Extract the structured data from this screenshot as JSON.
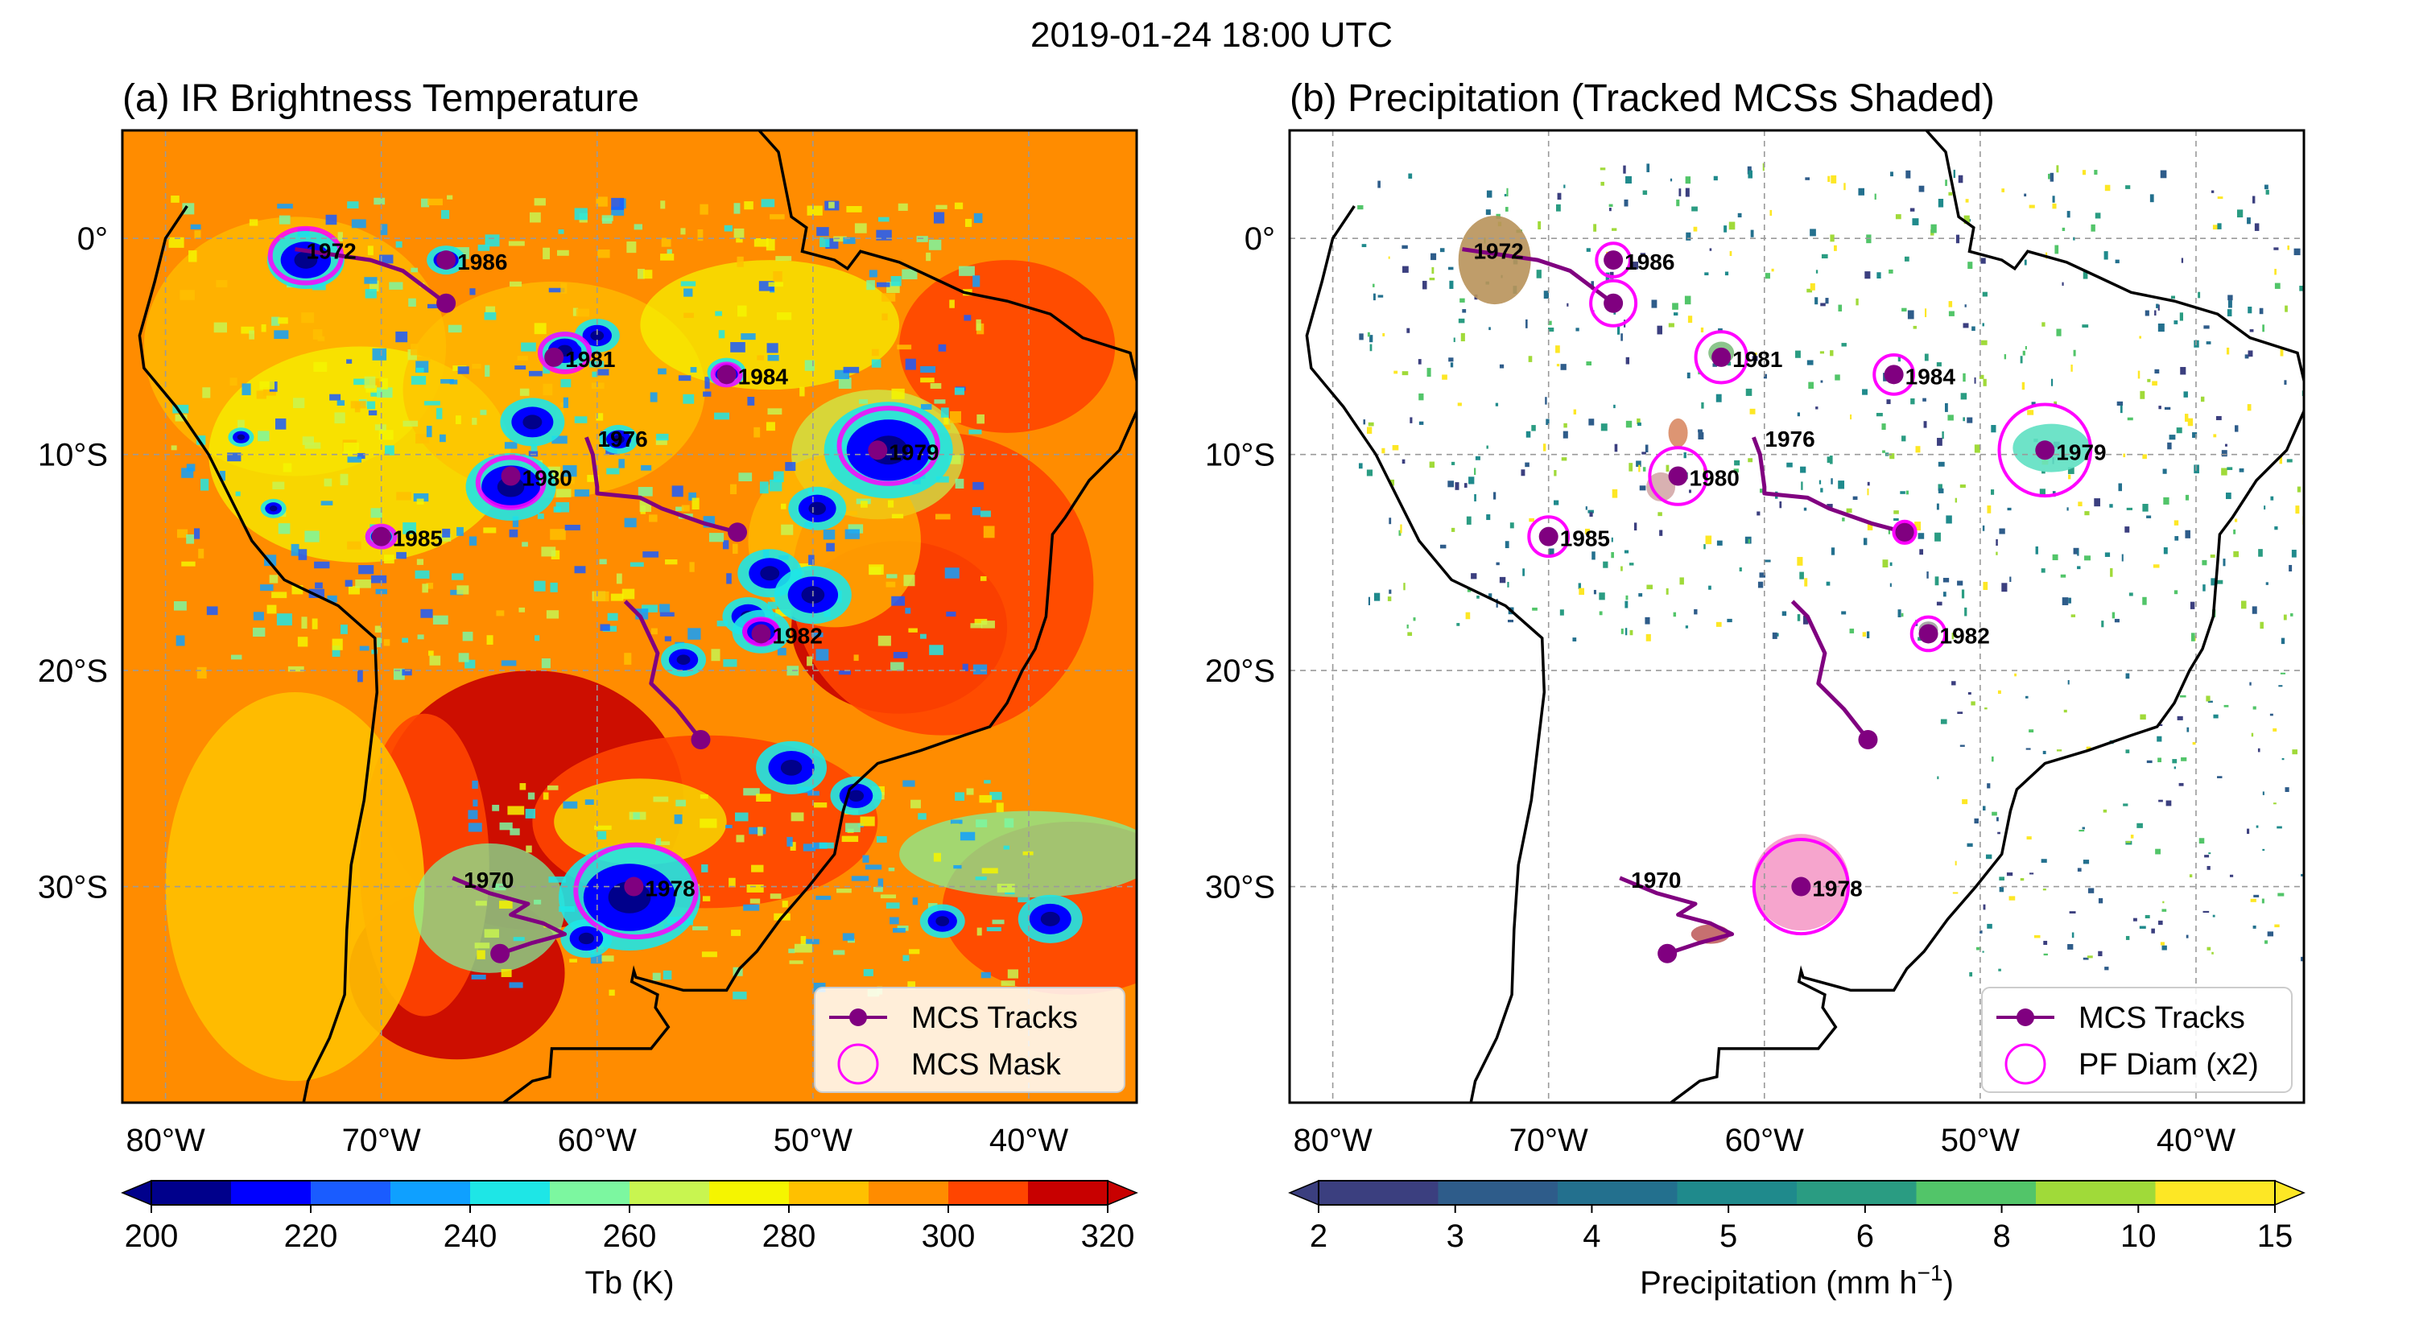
{
  "suptitle": "2019-01-24 18:00 UTC",
  "chart_data": [
    {
      "type": "heatmap",
      "title": "(a) IR Brightness Temperature",
      "lon_range": [
        -82,
        -35
      ],
      "lat_range": [
        -40,
        5
      ],
      "xticks": [
        -80,
        -70,
        -60,
        -50,
        -40
      ],
      "xtick_labels": [
        "80°W",
        "70°W",
        "60°W",
        "50°W",
        "40°W"
      ],
      "yticks": [
        0,
        -10,
        -20,
        -30
      ],
      "ytick_labels": [
        "0°",
        "10°S",
        "20°S",
        "30°S"
      ],
      "colorbar": {
        "label": "Tb (K)",
        "ticks": [
          200,
          220,
          240,
          260,
          280,
          300,
          320
        ],
        "tick_labels": [
          "200",
          "220",
          "240",
          "260",
          "280",
          "300",
          "320"
        ],
        "colors": [
          "#00008b",
          "#0000ff",
          "#1a5cff",
          "#0fa0ff",
          "#1ee6e6",
          "#7cf7a0",
          "#c8f550",
          "#f5f500",
          "#ffc000",
          "#ff8c00",
          "#ff4500",
          "#c80000"
        ]
      },
      "legend": {
        "location": "lower right",
        "entries": [
          {
            "label": "MCS Tracks",
            "type": "line-marker",
            "color": "#800080"
          },
          {
            "label": "MCS Mask",
            "type": "circle",
            "color": "#ff00ff"
          }
        ]
      }
    },
    {
      "type": "heatmap",
      "title": "(b) Precipitation (Tracked MCSs Shaded)",
      "lon_range": [
        -82,
        -35
      ],
      "lat_range": [
        -40,
        5
      ],
      "xticks": [
        -80,
        -70,
        -60,
        -50,
        -40
      ],
      "xtick_labels": [
        "80°W",
        "70°W",
        "60°W",
        "50°W",
        "40°W"
      ],
      "yticks": [
        0,
        -10,
        -20,
        -30
      ],
      "ytick_labels": [
        "0°",
        "10°S",
        "20°S",
        "30°S"
      ],
      "colorbar": {
        "label": "Precipitation (mm h",
        "label_exponent": "−1",
        "label_end": ")",
        "ticks": [
          2,
          3,
          4,
          5,
          6,
          8,
          10,
          15
        ],
        "tick_labels": [
          "2",
          "3",
          "4",
          "5",
          "6",
          "8",
          "10",
          "15"
        ],
        "colors": [
          "#3b3f7f",
          "#2e5c8a",
          "#23708e",
          "#1f8a8c",
          "#2a9c82",
          "#52c569",
          "#a0da39",
          "#fde725"
        ]
      },
      "legend": {
        "location": "lower right",
        "entries": [
          {
            "label": "MCS Tracks",
            "type": "line-marker",
            "color": "#800080"
          },
          {
            "label": "PF Diam (x2)",
            "type": "circle",
            "color": "#ff00ff"
          }
        ]
      }
    }
  ],
  "mcs_tracks": [
    {
      "id": "1972",
      "points": [
        [
          -67,
          -3
        ],
        [
          -69,
          -1.5
        ],
        [
          -70.5,
          -1
        ],
        [
          -74,
          -0.5
        ]
      ],
      "pf_diam": 1.0
    },
    {
      "id": "1986",
      "points": [
        [
          -67,
          -1
        ]
      ],
      "pf_diam": 0.6
    },
    {
      "id": "1981",
      "points": [
        [
          -62,
          -5.5
        ]
      ],
      "pf_diam": 1.2
    },
    {
      "id": "1984",
      "points": [
        [
          -54,
          -6.3
        ]
      ],
      "pf_diam": 0.8
    },
    {
      "id": "1976",
      "points": [
        [
          -53.5,
          -13.6
        ],
        [
          -55,
          -13.2
        ],
        [
          -57,
          -12.5
        ],
        [
          -58,
          -12
        ],
        [
          -60,
          -11.8
        ],
        [
          -60,
          -11.5
        ],
        [
          -60.2,
          -10
        ],
        [
          -60.5,
          -9.2
        ]
      ],
      "pf_diam": 0.2
    },
    {
      "id": "1979",
      "points": [
        [
          -47,
          -9.8
        ]
      ],
      "pf_diam": 2.6
    },
    {
      "id": "1980",
      "points": [
        [
          -64,
          -11
        ]
      ],
      "pf_diam": 1.4
    },
    {
      "id": "1985",
      "points": [
        [
          -70,
          -13.8
        ]
      ],
      "pf_diam": 0.8
    },
    {
      "id": "1982",
      "points": [
        [
          -52.4,
          -18.3
        ]
      ],
      "pf_diam": 0.6
    },
    {
      "id": "unnamed",
      "points": [
        [
          -55.2,
          -23.2
        ],
        [
          -56.3,
          -21.8
        ],
        [
          -57.5,
          -20.6
        ],
        [
          -57.2,
          -19.2
        ],
        [
          -58,
          -17.5
        ],
        [
          -58.7,
          -16.8
        ]
      ],
      "pf_diam": 0.0
    },
    {
      "id": "1978",
      "points": [
        [
          -58.3,
          -30
        ]
      ],
      "pf_diam": 2.7
    },
    {
      "id": "1970",
      "points": [
        [
          -64.5,
          -33.1
        ],
        [
          -63,
          -32.6
        ],
        [
          -61.5,
          -32.2
        ],
        [
          -62.5,
          -31.7
        ],
        [
          -64,
          -31.3
        ],
        [
          -63.2,
          -30.8
        ],
        [
          -65,
          -30.3
        ],
        [
          -66.7,
          -29.6
        ]
      ],
      "pf_diam": 0.0
    }
  ]
}
